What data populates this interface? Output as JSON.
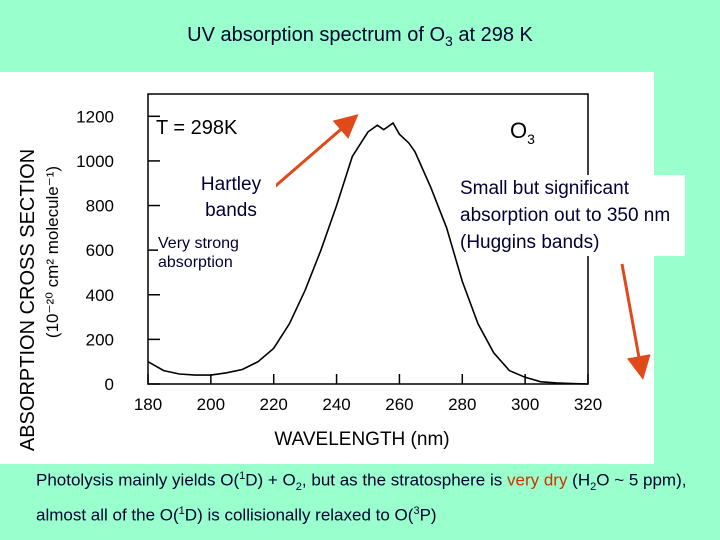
{
  "title": {
    "main": "UV absorption spectrum of O",
    "sub": "3",
    "tail": " at 298 K"
  },
  "chart_data": {
    "type": "line",
    "title": "UV absorption spectrum of O3 at 298 K",
    "xlabel": "WAVELENGTH (nm)",
    "ylabel": "ABSORPTION CROSS SECTION",
    "ylabel_units": "(10⁻²⁰ cm² molecule⁻¹)",
    "xlim": [
      180,
      320
    ],
    "ylim": [
      0,
      1300
    ],
    "xticks": [
      "180",
      "200",
      "220",
      "240",
      "260",
      "280",
      "300",
      "320"
    ],
    "yticks": [
      "0",
      "200",
      "400",
      "600",
      "800",
      "1000",
      "1200"
    ],
    "annotation_temp": "T = 298K",
    "annotation_species": "O",
    "annotation_species_sub": "3",
    "series": [
      {
        "name": "O3 cross section",
        "x": [
          180,
          185,
          190,
          195,
          200,
          205,
          210,
          215,
          220,
          225,
          230,
          235,
          240,
          245,
          250,
          253,
          255,
          258,
          260,
          263,
          265,
          270,
          275,
          280,
          285,
          290,
          295,
          300,
          305,
          310,
          315,
          320
        ],
        "y": [
          100,
          60,
          45,
          40,
          40,
          50,
          65,
          100,
          160,
          270,
          420,
          600,
          800,
          1020,
          1130,
          1160,
          1140,
          1170,
          1120,
          1080,
          1040,
          880,
          700,
          460,
          270,
          140,
          60,
          30,
          10,
          5,
          2,
          0
        ]
      }
    ],
    "colors": {
      "line": "#000000",
      "arrow": "#e04a1a"
    }
  },
  "callouts": {
    "hartley": "Hartley bands",
    "very_strong": "Very strong absorption",
    "huggins": "Small but significant absorption out to 350 nm (Huggins bands)"
  },
  "caption": {
    "p1": "Photolysis mainly yields O(",
    "s1": "1",
    "p2": "D) + O",
    "s2": "2",
    "p3": ", but as the stratosphere is ",
    "dry": "very dry",
    "p4": " (H",
    "s3": "2",
    "p5": "O ~ 5 ppm), almost all of the O(",
    "s4": "1",
    "p6": "D) is collisionally relaxed to O(",
    "s5": "3",
    "p7": "P)"
  }
}
